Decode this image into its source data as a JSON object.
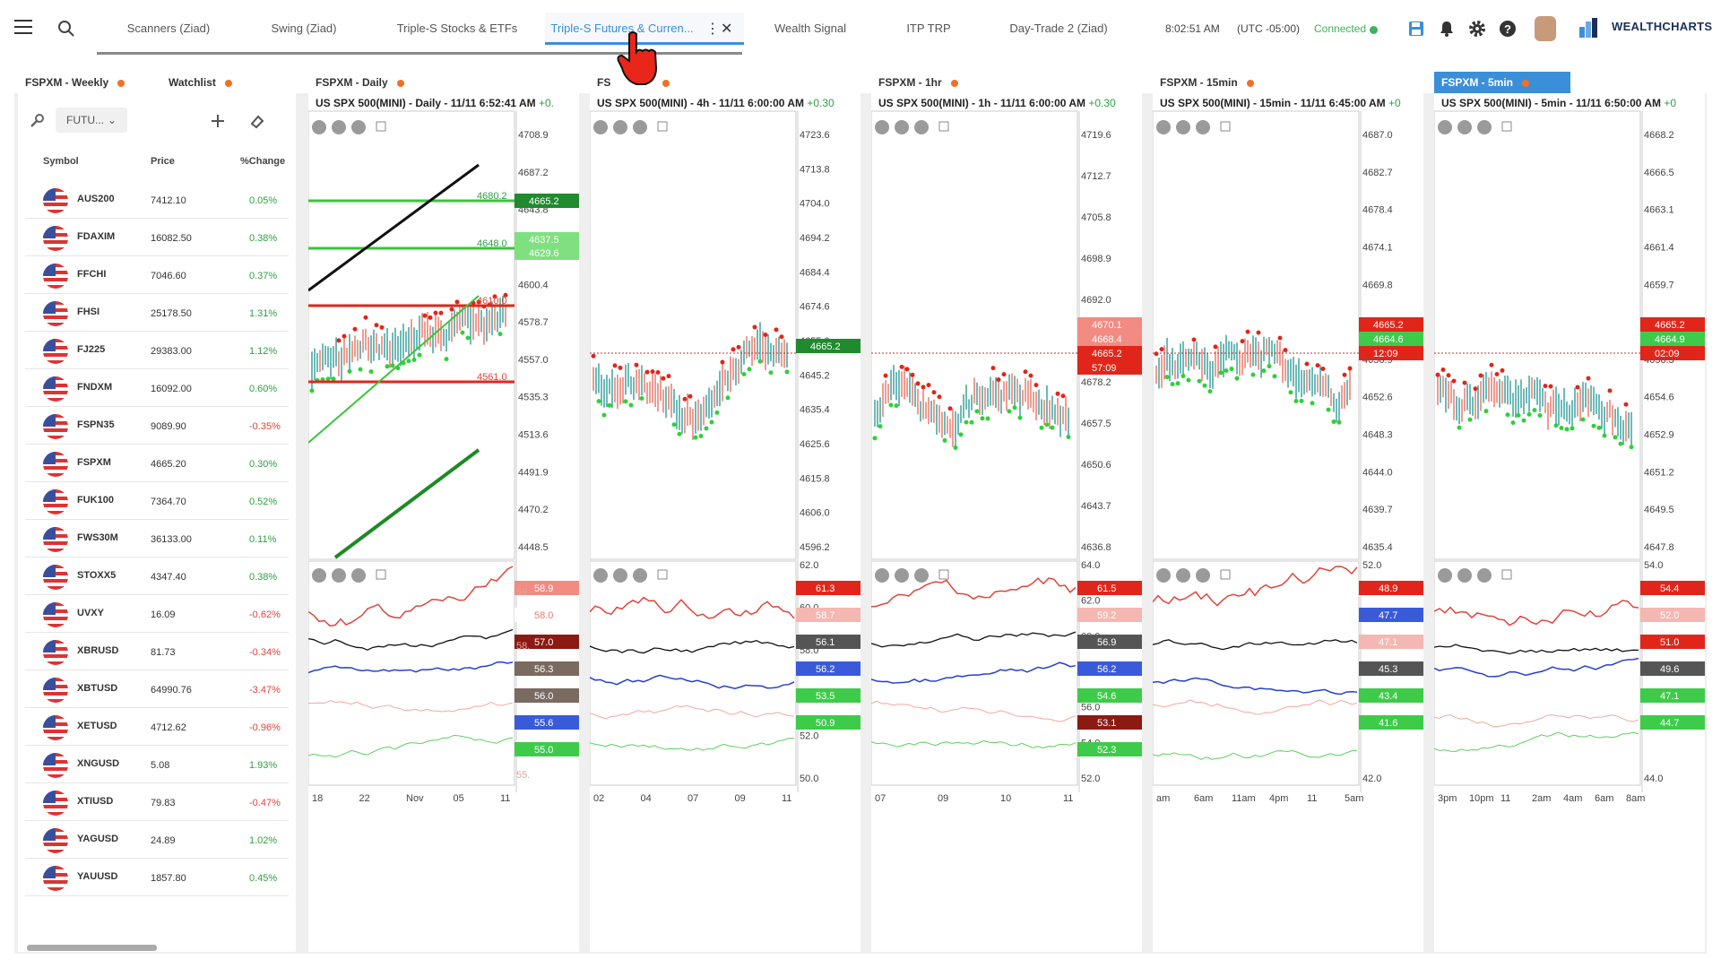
{
  "topbar": {
    "tabs": [
      {
        "label": "Scanners (Ziad)",
        "active": false
      },
      {
        "label": "Swing (Ziad)",
        "active": false
      },
      {
        "label": "Triple-S Stocks & ETFs",
        "active": false
      },
      {
        "label": "Triple-S Futures & Curren...",
        "active": true
      },
      {
        "label": "Wealth Signal",
        "active": false
      },
      {
        "label": "ITP TRP",
        "active": false
      },
      {
        "label": "Day-Trade 2 (Ziad)",
        "active": false
      }
    ],
    "more_glyph": "⋮",
    "close_glyph": "✕",
    "time": "8:02:51 AM",
    "timezone": "(UTC -05:00)",
    "connection": "Connected",
    "brand": "WEALTHCHARTS",
    "icons": [
      "menu-icon",
      "search-icon",
      "save-icon",
      "bell-icon",
      "gear-icon",
      "help-icon"
    ]
  },
  "watchlist": {
    "tabs": [
      {
        "label": "FSPXM - Weekly"
      },
      {
        "label": "Watchlist"
      }
    ],
    "filter_value": "FUTU...",
    "columns": {
      "symbol": "Symbol",
      "price": "Price",
      "change": "%Change"
    },
    "rows": [
      {
        "symbol": "AUS200",
        "price": "7412.10",
        "change": "0.05%",
        "up": true
      },
      {
        "symbol": "FDAXIM",
        "price": "16082.50",
        "change": "0.38%",
        "up": true
      },
      {
        "symbol": "FFCHI",
        "price": "7046.60",
        "change": "0.37%",
        "up": true
      },
      {
        "symbol": "FHSI",
        "price": "25178.50",
        "change": "1.31%",
        "up": true
      },
      {
        "symbol": "FJ225",
        "price": "29383.00",
        "change": "1.12%",
        "up": true
      },
      {
        "symbol": "FNDXM",
        "price": "16092.00",
        "change": "0.60%",
        "up": true
      },
      {
        "symbol": "FSPN35",
        "price": "9089.90",
        "change": "-0.35%",
        "up": false
      },
      {
        "symbol": "FSPXM",
        "price": "4665.20",
        "change": "0.30%",
        "up": true
      },
      {
        "symbol": "FUK100",
        "price": "7364.70",
        "change": "0.52%",
        "up": true
      },
      {
        "symbol": "FWS30M",
        "price": "36133.00",
        "change": "0.11%",
        "up": true
      },
      {
        "symbol": "STOXX5",
        "price": "4347.40",
        "change": "0.38%",
        "up": true
      },
      {
        "symbol": "UVXY",
        "price": "16.09",
        "change": "-0.62%",
        "up": false
      },
      {
        "symbol": "XBRUSD",
        "price": "81.73",
        "change": "-0.34%",
        "up": false
      },
      {
        "symbol": "XBTUSD",
        "price": "64990.76",
        "change": "-3.47%",
        "up": false
      },
      {
        "symbol": "XETUSD",
        "price": "4712.62",
        "change": "-0.96%",
        "up": false
      },
      {
        "symbol": "XNGUSD",
        "price": "5.08",
        "change": "1.93%",
        "up": true
      },
      {
        "symbol": "XTIUSD",
        "price": "79.83",
        "change": "-0.47%",
        "up": false
      },
      {
        "symbol": "YAGUSD",
        "price": "24.89",
        "change": "1.02%",
        "up": true
      },
      {
        "symbol": "YAUUSD",
        "price": "1857.80",
        "change": "0.45%",
        "up": true
      }
    ]
  },
  "colors": {
    "up": "#2ea043",
    "down": "#e0443a",
    "accent": "#3b8fd8",
    "connected": "#3bb55a",
    "brand": "#1a2f5a"
  },
  "charts": [
    {
      "tab": "FSPXM - Daily",
      "title": "US SPX 500(MINI) - Daily - 11/11 6:52:41 AM",
      "change": "+0.",
      "price_ticks": [
        "4708.9",
        "4687.2",
        "4643.8",
        "4622.1",
        "4600.4",
        "4578.7",
        "4557.0",
        "4535.3",
        "4513.6",
        "4491.9",
        "4470.2",
        "4448.5"
      ],
      "price_tags": [
        {
          "text": "4665.2",
          "kind": "last"
        },
        {
          "text": "4637.5",
          "kind": "green-light"
        },
        {
          "text": "4629.6",
          "kind": "green-light"
        }
      ],
      "level_labels": [
        "4680.2",
        "4648.0",
        "4610.0",
        "4561.0"
      ],
      "osc_tags": [
        {
          "text": "58.9",
          "kind": "red-light"
        },
        {
          "text": "58.0",
          "kind": "pink-text"
        },
        {
          "text": "57.0",
          "kind": "dark-red"
        },
        {
          "text": "56.3",
          "kind": "gray"
        },
        {
          "text": "56.0",
          "kind": "gray"
        },
        {
          "text": "55.6",
          "kind": "blue"
        },
        {
          "text": "55.0",
          "kind": "green"
        }
      ],
      "osc_ghost_labels": [
        "59.",
        "58.",
        "55."
      ],
      "x_ticks": [
        "18",
        "22",
        "Nov",
        "05",
        "11"
      ]
    },
    {
      "tab": "FS",
      "title": "US SPX 500(MINI) - 4h - 11/11 6:00:00 AM",
      "change": "+0.30",
      "price_ticks": [
        "4723.6",
        "4713.8",
        "4704.0",
        "4694.2",
        "4684.4",
        "4674.6",
        "4655.0",
        "4645.2",
        "4635.4",
        "4625.6",
        "4615.8",
        "4606.0",
        "4596.2"
      ],
      "price_tags": [
        {
          "text": "4665.2",
          "kind": "last"
        }
      ],
      "osc_ticks": [
        "62.0",
        "60.0",
        "58.0",
        "54.0",
        "52.0",
        "50.0"
      ],
      "osc_tags": [
        {
          "text": "61.3",
          "kind": "red"
        },
        {
          "text": "58.7",
          "kind": "pink"
        },
        {
          "text": "56.1",
          "kind": "dark"
        },
        {
          "text": "56.2",
          "kind": "blue"
        },
        {
          "text": "53.5",
          "kind": "green"
        },
        {
          "text": "50.9",
          "kind": "green"
        }
      ],
      "x_ticks": [
        "02",
        "04",
        "07",
        "09",
        "11"
      ]
    },
    {
      "tab": "FSPXM - 1hr",
      "title": "US SPX 500(MINI) - 1h - 11/11 6:00:00 AM",
      "change": "+0.30",
      "price_ticks": [
        "4719.6",
        "4712.7",
        "4705.8",
        "4698.9",
        "4692.0",
        "4685.1",
        "4678.2",
        "4657.5",
        "4650.6",
        "4643.7",
        "4636.8"
      ],
      "price_tags": [
        {
          "text": "4670.1",
          "kind": "red-light"
        },
        {
          "text": "4668.4",
          "kind": "red-light"
        },
        {
          "text": "4665.2",
          "kind": "red"
        },
        {
          "text": "57:09",
          "kind": "red"
        }
      ],
      "osc_ticks": [
        "64.0",
        "62.0",
        "60.0",
        "58.0",
        "56.0",
        "54.0",
        "52.0"
      ],
      "osc_tags": [
        {
          "text": "61.5",
          "kind": "red"
        },
        {
          "text": "59.2",
          "kind": "pink"
        },
        {
          "text": "56.9",
          "kind": "dark"
        },
        {
          "text": "56.2",
          "kind": "blue"
        },
        {
          "text": "54.6",
          "kind": "green"
        },
        {
          "text": "53.1",
          "kind": "dark-red"
        },
        {
          "text": "52.3",
          "kind": "green"
        }
      ],
      "x_ticks": [
        "07",
        "09",
        "10",
        "11"
      ]
    },
    {
      "tab": "FSPXM - 15min",
      "title": "US SPX 500(MINI) - 15min - 11/11 6:45:00 AM",
      "change": "+0",
      "price_ticks": [
        "4687.0",
        "4682.7",
        "4678.4",
        "4674.1",
        "4669.8",
        "4661.2",
        "4656.9",
        "4652.6",
        "4648.3",
        "4644.0",
        "4639.7",
        "4635.4"
      ],
      "price_tags": [
        {
          "text": "4665.2",
          "kind": "red"
        },
        {
          "text": "4664.6",
          "kind": "green"
        },
        {
          "text": "12:09",
          "kind": "red"
        }
      ],
      "osc_ticks": [
        "52.0",
        "50.0",
        "46.0",
        "44.0",
        "42.0"
      ],
      "osc_tags": [
        {
          "text": "48.9",
          "kind": "red"
        },
        {
          "text": "47.7",
          "kind": "blue"
        },
        {
          "text": "47.1",
          "kind": "pink"
        },
        {
          "text": "45.3",
          "kind": "dark"
        },
        {
          "text": "43.4",
          "kind": "green"
        },
        {
          "text": "41.6",
          "kind": "green"
        }
      ],
      "x_ticks": [
        "am",
        "6am",
        "11am",
        "4pm",
        "11",
        "5am"
      ]
    },
    {
      "tab": "FSPXM - 5min",
      "title": "US SPX 500(MINI) - 5min - 11/11 6:50:00 AM",
      "change": "+0",
      "price_ticks": [
        "4668.2",
        "4666.5",
        "4663.1",
        "4661.4",
        "4659.7",
        "4658.0",
        "4656.3",
        "4654.6",
        "4652.9",
        "4651.2",
        "4649.5",
        "4647.8"
      ],
      "price_tags": [
        {
          "text": "4665.2",
          "kind": "red"
        },
        {
          "text": "4664.9",
          "kind": "green"
        },
        {
          "text": "02:09",
          "kind": "red"
        }
      ],
      "osc_ticks": [
        "54.0",
        "52.0",
        "48.0",
        "46.0",
        "44.0"
      ],
      "osc_tags": [
        {
          "text": "54.4",
          "kind": "red"
        },
        {
          "text": "52.0",
          "kind": "pink"
        },
        {
          "text": "51.0",
          "kind": "red"
        },
        {
          "text": "49.6",
          "kind": "dark"
        },
        {
          "text": "47.1",
          "kind": "green"
        },
        {
          "text": "44.7",
          "kind": "green"
        }
      ],
      "x_ticks": [
        "3pm",
        "10pm",
        "11",
        "2am",
        "4am",
        "6am",
        "8am"
      ]
    }
  ]
}
